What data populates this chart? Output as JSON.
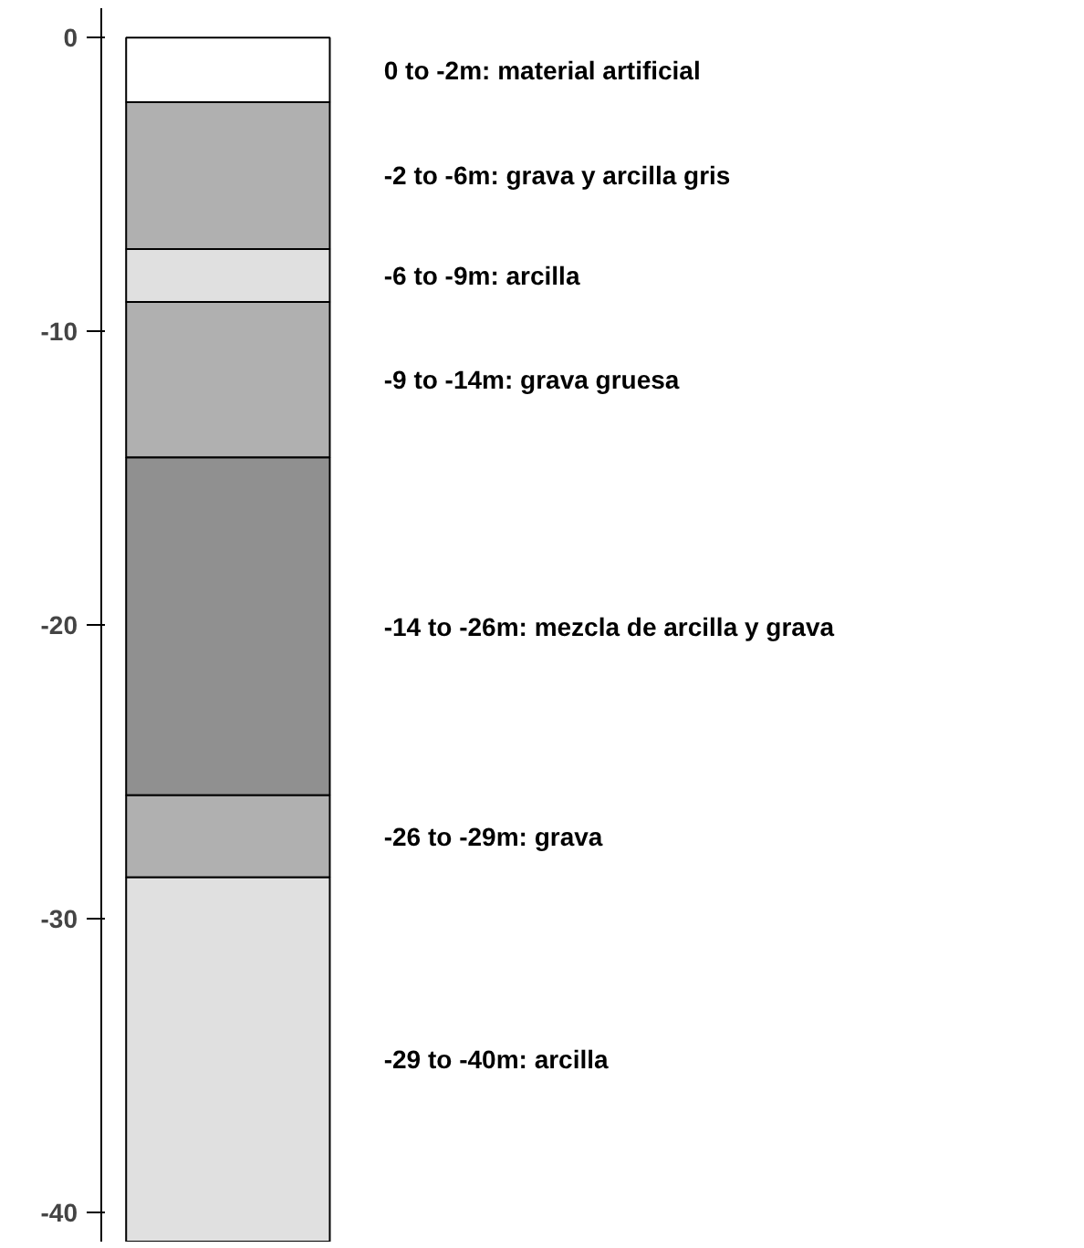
{
  "chart_data": {
    "type": "bar",
    "stacked": true,
    "categories": [
      null
    ],
    "tick_labels": "y",
    "grid": false,
    "series": [
      {
        "name": "0 to -2m: material artificial",
        "color": "#ffffff",
        "values": [
          -2.2
        ]
      },
      {
        "name": "-2 to -6m: grava y arcilla gris",
        "color": "#b0b0b0",
        "values": [
          -5.0
        ]
      },
      {
        "name": "-6 to -9m: arcilla",
        "color": "#e0e0e0",
        "values": [
          -1.8
        ]
      },
      {
        "name": "-9 to -14m:  grava gruesa",
        "color": "#b0b0b0",
        "values": [
          -5.3
        ]
      },
      {
        "name": "-14 to -26m: mezcla de arcilla y grava",
        "color": "#909090",
        "values": [
          -11.5
        ]
      },
      {
        "name": "-26 to -29m: grava",
        "color": "#b0b0b0",
        "values": [
          -2.8
        ]
      },
      {
        "name": "-29 to -40m: arcilla",
        "color": "#e0e0e0",
        "values": [
          -12.4
        ]
      }
    ],
    "ylim": [
      -41,
      1
    ],
    "yticks": [
      0,
      -10,
      -20,
      -30,
      -40
    ]
  }
}
